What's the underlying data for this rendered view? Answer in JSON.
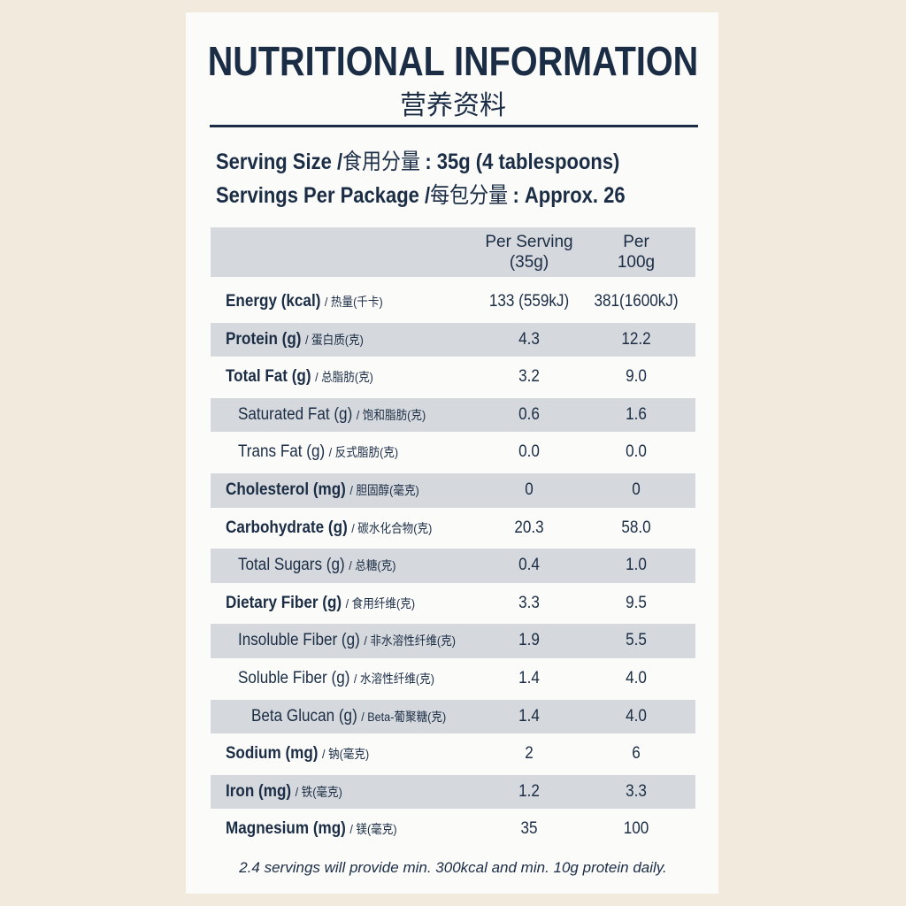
{
  "header": {
    "title": "NUTRITIONAL INFORMATION",
    "subtitle": "营养资料"
  },
  "serving": [
    {
      "label": "Serving Size /",
      "label_zh": "食用分量",
      "value": ": 35g (4 tablespoons)"
    },
    {
      "label": "Servings Per Package /",
      "label_zh": "每包分量",
      "value": ": Approx. 26"
    }
  ],
  "table": {
    "columns": [
      [
        "Per Serving",
        "(35g)"
      ],
      [
        "Per",
        "100g"
      ]
    ],
    "rows": [
      {
        "name": "Energy (kcal)",
        "name_zh": "/ 热量(千卡)",
        "values": [
          "133 (559kJ)",
          "381(1600kJ)"
        ]
      },
      {
        "name": "Protein (g)",
        "name_zh": "/ 蛋白质(克)",
        "values": [
          "4.3",
          "12.2"
        ]
      },
      {
        "name": "Total Fat (g)",
        "name_zh": "/ 总脂肪(克)",
        "values": [
          "3.2",
          "9.0"
        ]
      },
      {
        "name": "Saturated Fat (g)",
        "name_zh": "/ 饱和脂肪(克)",
        "values": [
          "0.6",
          "1.6"
        ]
      },
      {
        "name": "Trans Fat (g)",
        "name_zh": "/ 反式脂肪(克)",
        "values": [
          "0.0",
          "0.0"
        ]
      },
      {
        "name": "Cholesterol (mg)",
        "name_zh": "/ 胆固醇(毫克)",
        "values": [
          "0",
          "0"
        ]
      },
      {
        "name": "Carbohydrate (g)",
        "name_zh": "/ 碳水化合物(克)",
        "values": [
          "20.3",
          "58.0"
        ]
      },
      {
        "name": "Total Sugars (g)",
        "name_zh": "/ 总糖(克)",
        "values": [
          "0.4",
          "1.0"
        ]
      },
      {
        "name": "Dietary Fiber (g)",
        "name_zh": "/ 食用纤维(克)",
        "values": [
          "3.3",
          "9.5"
        ]
      },
      {
        "name": "Insoluble Fiber (g)",
        "name_zh": "/ 非水溶性纤维(克)",
        "values": [
          "1.9",
          "5.5"
        ]
      },
      {
        "name": "Soluble Fiber (g)",
        "name_zh": "/ 水溶性纤维(克)",
        "values": [
          "1.4",
          "4.0"
        ]
      },
      {
        "name": "Beta Glucan (g)",
        "name_zh": "/ Beta-葡聚糖(克)",
        "values": [
          "1.4",
          "4.0"
        ]
      },
      {
        "name": "Sodium (mg)",
        "name_zh": "/ 钠(毫克)",
        "values": [
          "2",
          "6"
        ]
      },
      {
        "name": "Iron (mg)",
        "name_zh": "/ 铁(毫克)",
        "values": [
          "1.2",
          "3.3"
        ]
      },
      {
        "name": "Magnesium (mg)",
        "name_zh": "/ 镁(毫克)",
        "values": [
          "35",
          "100"
        ]
      }
    ]
  },
  "footer": "2.4 servings will provide min. 300kcal and min. 10g protein daily."
}
